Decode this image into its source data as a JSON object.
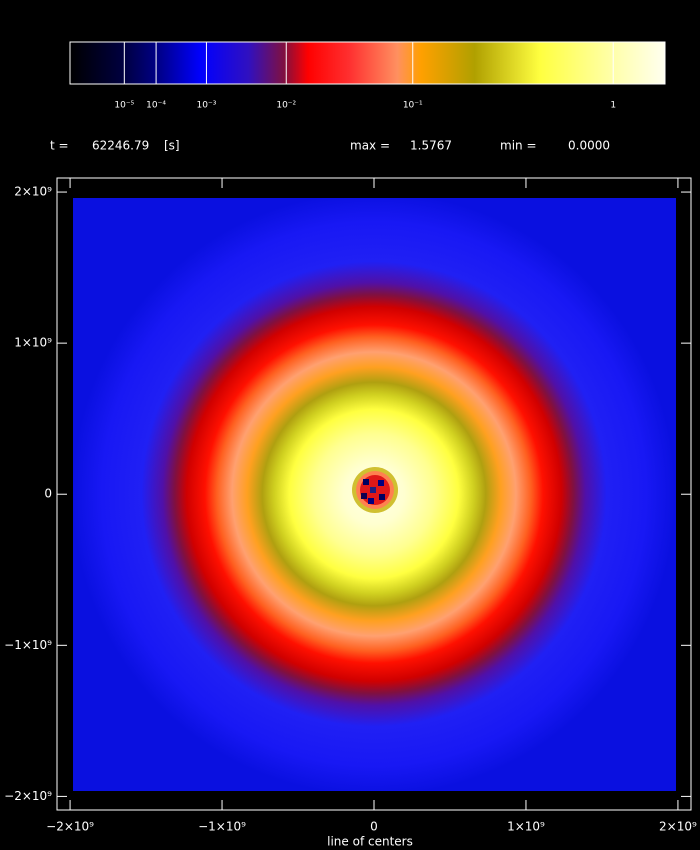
{
  "chart_data": {
    "type": "heatmap",
    "time_label": "t =",
    "time": 62246.79,
    "time_unit": "[s]",
    "max_label": "max =",
    "max": 1.5767,
    "min_label": "min =",
    "min": {
      "value": 0,
      "label": "0.0000"
    },
    "colorbar": {
      "scale": "power",
      "power": 0.2,
      "ticks": [
        {
          "value": 1e-05,
          "label": "10⁻⁵"
        },
        {
          "value": 0.0001,
          "label": "10⁻⁴"
        },
        {
          "value": 0.001,
          "label": "10⁻³"
        },
        {
          "value": 0.01,
          "label": "10⁻²"
        },
        {
          "value": 0.1,
          "label": "10⁻¹"
        },
        1
      ]
    },
    "xlabel": "line of centers",
    "xlim": [
      -2086000000.0,
      2086000000.0
    ],
    "ylim": [
      -2090000000.0,
      2093000000.0
    ],
    "xticks": [
      {
        "value": -2000000000.0,
        "label": "−2×10⁹"
      },
      {
        "value": -1000000000.0,
        "label": "−1×10⁹"
      },
      0,
      {
        "value": 1000000000.0,
        "label": "1×10⁹"
      },
      {
        "value": 2000000000.0,
        "label": "2×10⁹"
      }
    ],
    "yticks": [
      {
        "value": -2000000000.0,
        "label": "−2×10⁹"
      },
      {
        "value": -1000000000.0,
        "label": "−1×10⁹"
      },
      0,
      {
        "value": 1000000000.0,
        "label": "1×10⁹"
      },
      {
        "value": 2000000000.0,
        "label": "2×10⁹"
      }
    ]
  }
}
